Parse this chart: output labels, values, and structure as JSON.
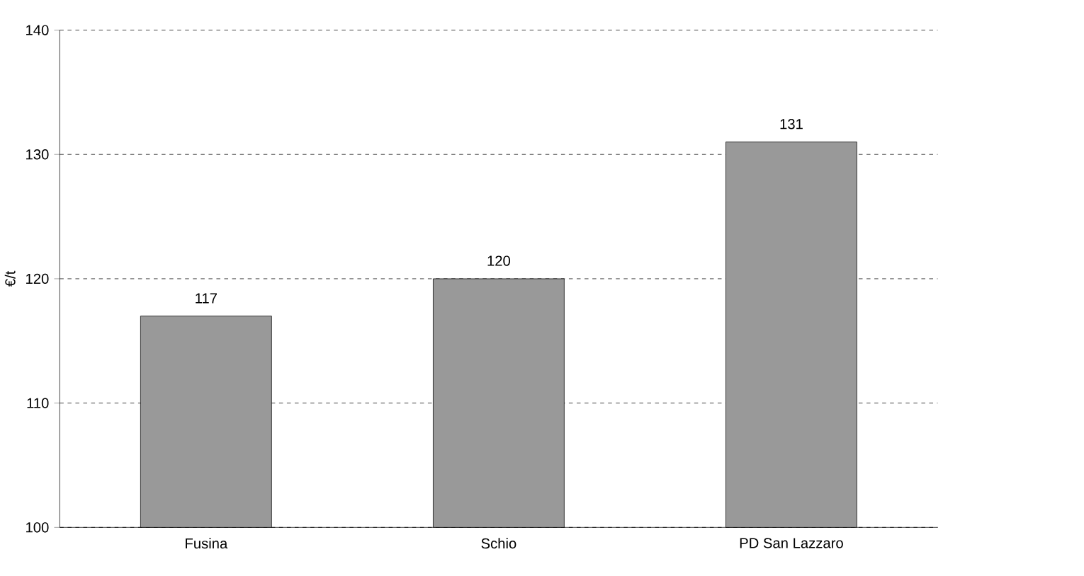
{
  "chart_data": {
    "type": "bar",
    "ylabel": "€/t",
    "categories": [
      "Fusina",
      "Schio",
      "PD San Lazzaro"
    ],
    "values": [
      117,
      120,
      131
    ],
    "color": "#999999",
    "ylim": [
      100,
      140
    ],
    "yticks": [
      100,
      110,
      120,
      130,
      140
    ],
    "grid": "y",
    "data_labels": true
  }
}
